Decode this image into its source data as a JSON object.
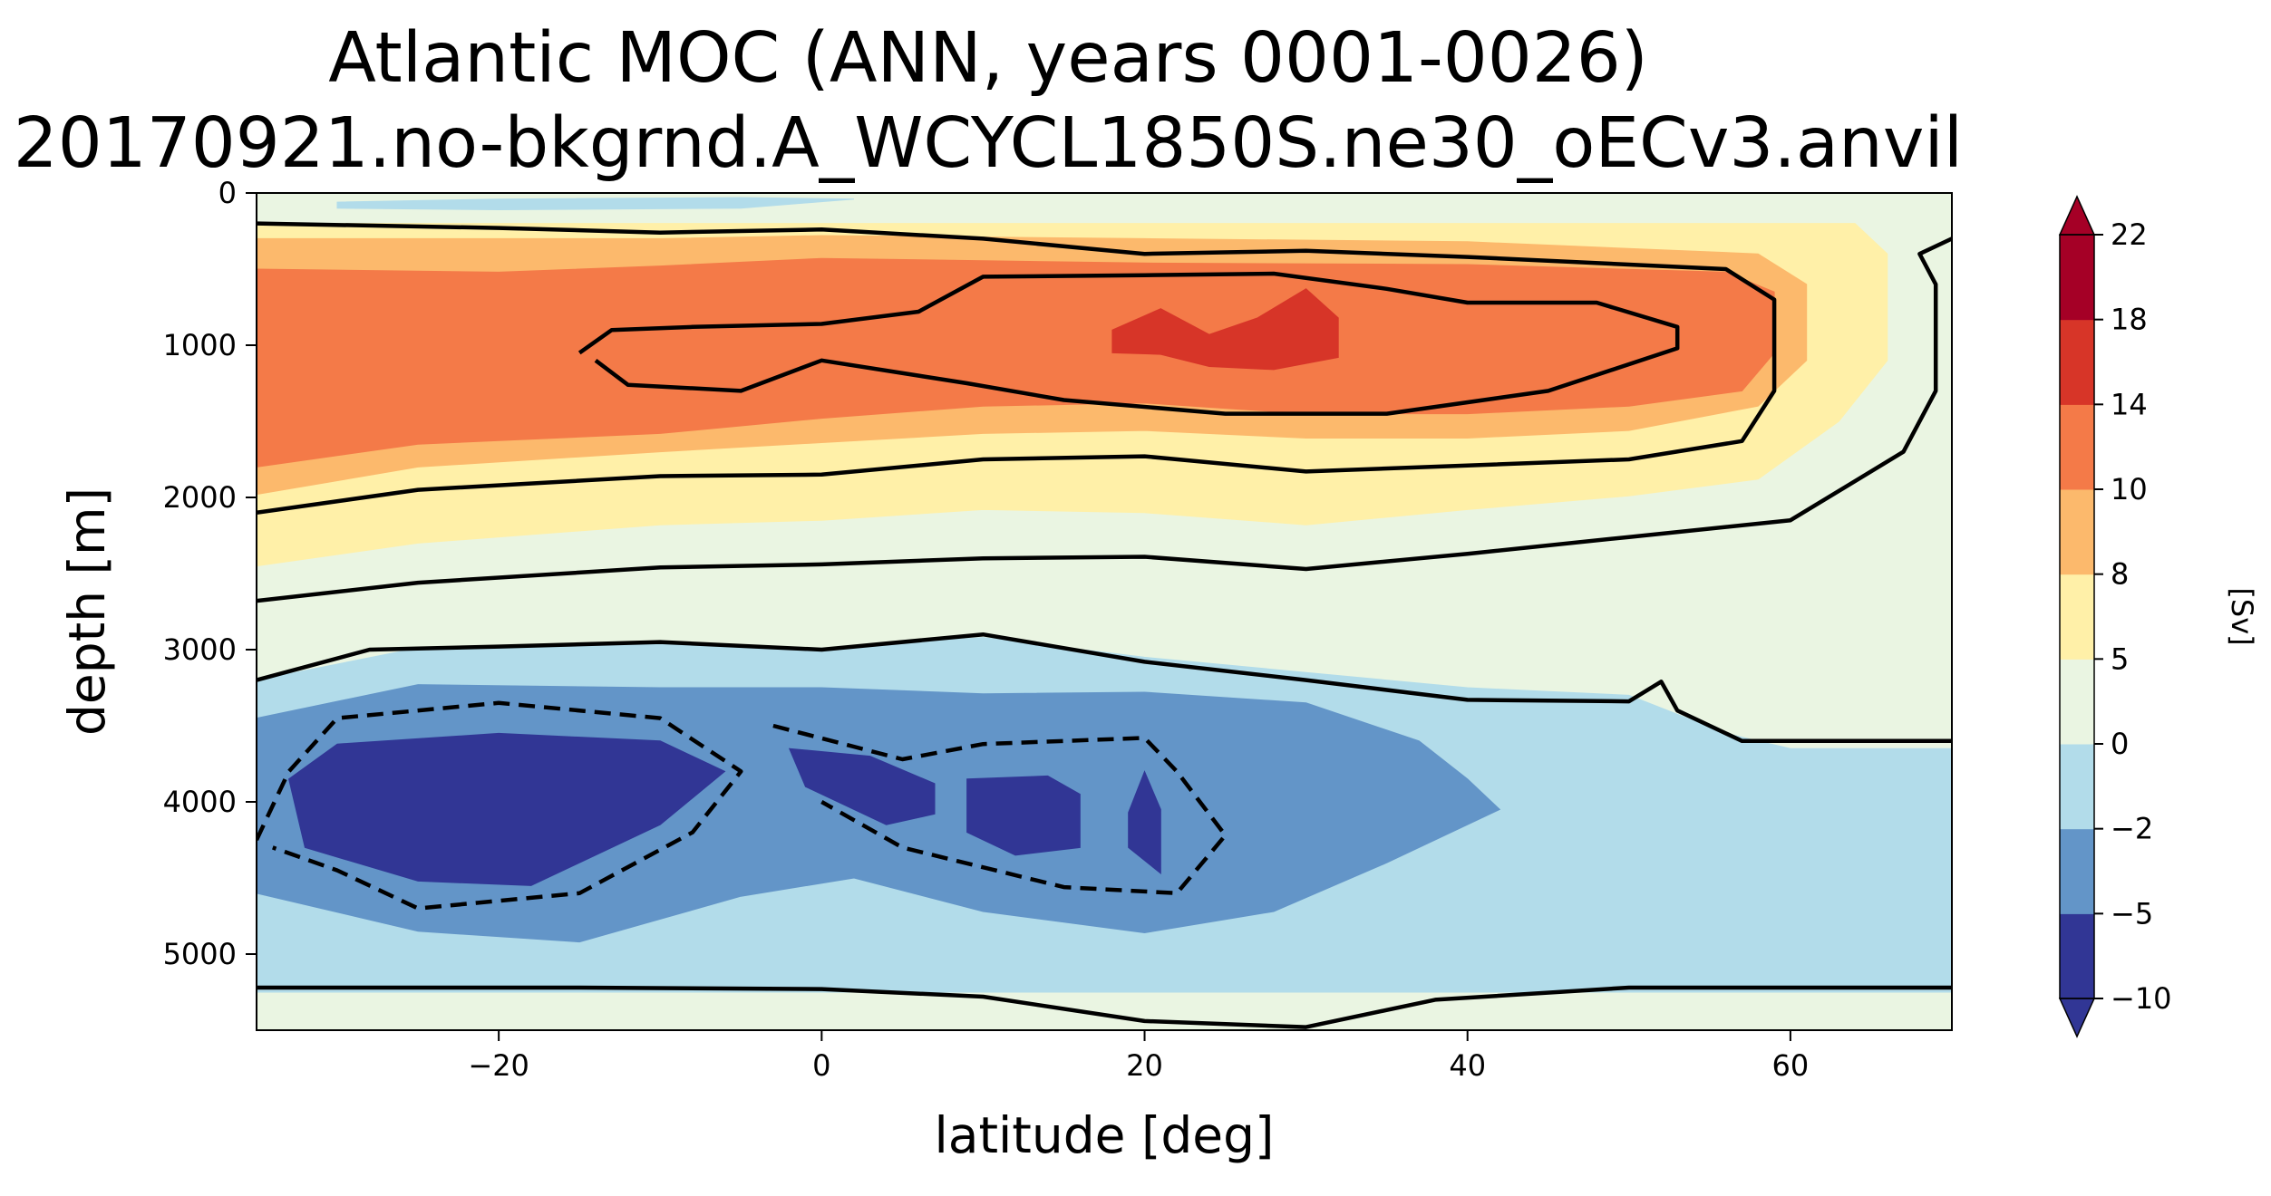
{
  "chart_data": {
    "type": "contourf",
    "title": "Atlantic MOC (ANN, years 0001-0026)",
    "subtitle": "20170921.no-bkgrnd.A_WCYCL1850S.ne30_oECv3.anvil",
    "xlabel": "latitude [deg]",
    "ylabel": "depth [m]",
    "xlim": [
      -35,
      70
    ],
    "ylim": [
      5500,
      0
    ],
    "x_ticks": [
      -20,
      0,
      20,
      40,
      60
    ],
    "x_tick_labels": [
      "−20",
      "0",
      "20",
      "40",
      "60"
    ],
    "y_ticks": [
      0,
      1000,
      2000,
      3000,
      4000,
      5000
    ],
    "y_tick_labels": [
      "0",
      "1000",
      "2000",
      "3000",
      "4000",
      "5000"
    ],
    "colorbar": {
      "label": "[Sv]",
      "levels": [
        -10,
        -5,
        -2,
        0,
        5,
        8,
        10,
        14,
        18,
        22
      ],
      "level_labels": [
        "−10",
        "−5",
        "−2",
        "0",
        "5",
        "8",
        "10",
        "14",
        "18",
        "22"
      ],
      "colors": [
        "#313695",
        "#6395c8",
        "#b2dcea",
        "#eaf5e2",
        "#fff0a8",
        "#fcb96c",
        "#f47a48",
        "#d73528",
        "#a50026"
      ],
      "extend": "both"
    },
    "regions": [
      {
        "level": 0,
        "points": [
          [
            -35,
            2700
          ],
          [
            -25,
            2580
          ],
          [
            -10,
            2480
          ],
          [
            0,
            2450
          ],
          [
            10,
            2420
          ],
          [
            20,
            2400
          ],
          [
            30,
            2480
          ],
          [
            40,
            2390
          ],
          [
            50,
            2280
          ],
          [
            60,
            2180
          ],
          [
            67,
            1800
          ],
          [
            70,
            1500
          ],
          [
            70,
            0
          ],
          [
            -35,
            0
          ]
        ]
      },
      {
        "level": 5,
        "points": [
          [
            -35,
            2450
          ],
          [
            -25,
            2300
          ],
          [
            -10,
            2180
          ],
          [
            0,
            2150
          ],
          [
            10,
            2080
          ],
          [
            20,
            2100
          ],
          [
            30,
            2180
          ],
          [
            40,
            2080
          ],
          [
            50,
            1990
          ],
          [
            58,
            1880
          ],
          [
            63,
            1500
          ],
          [
            66,
            1100
          ],
          [
            66,
            400
          ],
          [
            64,
            200
          ],
          [
            -35,
            200
          ]
        ]
      },
      {
        "level": 8,
        "points": [
          [
            -35,
            1980
          ],
          [
            -25,
            1800
          ],
          [
            -10,
            1700
          ],
          [
            0,
            1640
          ],
          [
            10,
            1580
          ],
          [
            20,
            1560
          ],
          [
            30,
            1610
          ],
          [
            40,
            1610
          ],
          [
            50,
            1560
          ],
          [
            58,
            1400
          ],
          [
            61,
            1100
          ],
          [
            61,
            600
          ],
          [
            58,
            400
          ],
          [
            40,
            320
          ],
          [
            20,
            300
          ],
          [
            0,
            280
          ],
          [
            -10,
            300
          ],
          [
            -35,
            300
          ]
        ]
      },
      {
        "level": 10,
        "points": [
          [
            -35,
            1800
          ],
          [
            -25,
            1650
          ],
          [
            -10,
            1580
          ],
          [
            0,
            1480
          ],
          [
            10,
            1400
          ],
          [
            20,
            1380
          ],
          [
            30,
            1450
          ],
          [
            40,
            1450
          ],
          [
            50,
            1400
          ],
          [
            57,
            1300
          ],
          [
            59,
            1050
          ],
          [
            59,
            650
          ],
          [
            56,
            520
          ],
          [
            40,
            470
          ],
          [
            20,
            460
          ],
          [
            0,
            430
          ],
          [
            -10,
            480
          ],
          [
            -20,
            520
          ],
          [
            -35,
            500
          ]
        ]
      },
      {
        "level": 14,
        "points": [
          [
            18,
            900
          ],
          [
            21,
            760
          ],
          [
            24,
            930
          ],
          [
            27,
            820
          ],
          [
            30,
            630
          ],
          [
            32,
            820
          ],
          [
            32,
            1080
          ],
          [
            28,
            1160
          ],
          [
            24,
            1140
          ],
          [
            21,
            1060
          ],
          [
            18,
            1050
          ]
        ]
      },
      {
        "level": -2,
        "points": [
          [
            -35,
            3200
          ],
          [
            -25,
            2990
          ],
          [
            -10,
            2950
          ],
          [
            0,
            2990
          ],
          [
            10,
            2920
          ],
          [
            20,
            3050
          ],
          [
            30,
            3150
          ],
          [
            40,
            3250
          ],
          [
            50,
            3300
          ],
          [
            56,
            3550
          ],
          [
            60,
            3650
          ],
          [
            70,
            3650
          ],
          [
            70,
            5250
          ],
          [
            -35,
            5250
          ]
        ]
      },
      {
        "level": -5,
        "points": [
          [
            -35,
            3450
          ],
          [
            -25,
            3230
          ],
          [
            -10,
            3250
          ],
          [
            0,
            3250
          ],
          [
            10,
            3290
          ],
          [
            20,
            3280
          ],
          [
            30,
            3350
          ],
          [
            37,
            3600
          ],
          [
            40,
            3850
          ],
          [
            42,
            4050
          ],
          [
            40,
            4150
          ],
          [
            35,
            4400
          ],
          [
            28,
            4720
          ],
          [
            20,
            4860
          ],
          [
            10,
            4720
          ],
          [
            2,
            4500
          ],
          [
            -5,
            4620
          ],
          [
            -15,
            4920
          ],
          [
            -25,
            4850
          ],
          [
            -35,
            4600
          ]
        ]
      },
      {
        "level": -10,
        "points": [
          [
            -33,
            3850
          ],
          [
            -30,
            3620
          ],
          [
            -20,
            3550
          ],
          [
            -10,
            3600
          ],
          [
            -6,
            3800
          ],
          [
            -10,
            4150
          ],
          [
            -18,
            4550
          ],
          [
            -25,
            4520
          ],
          [
            -32,
            4300
          ]
        ]
      },
      {
        "level": -10,
        "points": [
          [
            -2,
            3650
          ],
          [
            3,
            3700
          ],
          [
            7,
            3880
          ],
          [
            7,
            4080
          ],
          [
            4,
            4150
          ],
          [
            -1,
            3900
          ]
        ]
      },
      {
        "level": -10,
        "points": [
          [
            9,
            3850
          ],
          [
            14,
            3830
          ],
          [
            16,
            3950
          ],
          [
            16,
            4300
          ],
          [
            12,
            4350
          ],
          [
            9,
            4200
          ]
        ]
      },
      {
        "level": -10,
        "points": [
          [
            19,
            4070
          ],
          [
            20,
            3800
          ],
          [
            21,
            4050
          ],
          [
            21,
            4470
          ],
          [
            19,
            4300
          ]
        ]
      },
      {
        "level": -2,
        "points": [
          [
            -30,
            60
          ],
          [
            -20,
            40
          ],
          [
            -5,
            30
          ],
          [
            2,
            40
          ],
          [
            -5,
            100
          ],
          [
            -20,
            110
          ],
          [
            -30,
            100
          ]
        ]
      }
    ],
    "contours": [
      {
        "style": "solid",
        "points": [
          [
            -35,
            2680
          ],
          [
            -25,
            2560
          ],
          [
            -10,
            2460
          ],
          [
            0,
            2440
          ],
          [
            10,
            2400
          ],
          [
            20,
            2390
          ],
          [
            30,
            2470
          ],
          [
            40,
            2370
          ],
          [
            50,
            2260
          ],
          [
            60,
            2150
          ],
          [
            67,
            1700
          ],
          [
            69,
            1300
          ],
          [
            69,
            600
          ],
          [
            68,
            400
          ],
          [
            70,
            300
          ]
        ]
      },
      {
        "style": "solid",
        "points": [
          [
            -35,
            2100
          ],
          [
            -25,
            1950
          ],
          [
            -10,
            1860
          ],
          [
            0,
            1850
          ],
          [
            10,
            1750
          ],
          [
            20,
            1730
          ],
          [
            30,
            1830
          ],
          [
            40,
            1790
          ],
          [
            50,
            1750
          ],
          [
            57,
            1630
          ],
          [
            59,
            1300
          ],
          [
            59,
            700
          ],
          [
            56,
            500
          ],
          [
            50,
            470
          ],
          [
            40,
            420
          ],
          [
            30,
            380
          ],
          [
            20,
            400
          ],
          [
            10,
            300
          ],
          [
            0,
            240
          ],
          [
            -10,
            260
          ],
          [
            -20,
            230
          ],
          [
            -35,
            200
          ]
        ]
      },
      {
        "style": "solid",
        "points": [
          [
            -15,
            1050
          ],
          [
            -13,
            900
          ],
          [
            -8,
            880
          ],
          [
            0,
            860
          ],
          [
            6,
            780
          ],
          [
            10,
            550
          ],
          [
            20,
            540
          ],
          [
            28,
            530
          ],
          [
            35,
            630
          ],
          [
            40,
            720
          ],
          [
            48,
            720
          ],
          [
            53,
            880
          ],
          [
            53,
            1020
          ],
          [
            45,
            1300
          ],
          [
            35,
            1450
          ],
          [
            25,
            1450
          ],
          [
            15,
            1360
          ],
          [
            9,
            1250
          ],
          [
            0,
            1100
          ],
          [
            -5,
            1300
          ],
          [
            -12,
            1260
          ],
          [
            -14,
            1100
          ]
        ]
      },
      {
        "style": "solid",
        "points": [
          [
            -35,
            3200
          ],
          [
            -28,
            3000
          ],
          [
            -20,
            2980
          ],
          [
            -10,
            2950
          ],
          [
            0,
            3000
          ],
          [
            10,
            2900
          ],
          [
            20,
            3080
          ],
          [
            30,
            3200
          ],
          [
            40,
            3330
          ],
          [
            50,
            3340
          ],
          [
            52,
            3210
          ],
          [
            53,
            3400
          ],
          [
            57,
            3600
          ],
          [
            70,
            3600
          ]
        ]
      },
      {
        "style": "solid",
        "points": [
          [
            -35,
            5220
          ],
          [
            -15,
            5220
          ],
          [
            0,
            5230
          ],
          [
            10,
            5280
          ],
          [
            20,
            5440
          ],
          [
            30,
            5480
          ],
          [
            38,
            5300
          ],
          [
            50,
            5220
          ],
          [
            70,
            5220
          ]
        ]
      },
      {
        "style": "dashed",
        "points": [
          [
            -35,
            4250
          ],
          [
            -33,
            3800
          ],
          [
            -30,
            3450
          ],
          [
            -20,
            3350
          ],
          [
            -10,
            3450
          ],
          [
            -5,
            3800
          ],
          [
            -8,
            4200
          ],
          [
            -15,
            4600
          ],
          [
            -25,
            4700
          ],
          [
            -30,
            4450
          ],
          [
            -34,
            4300
          ]
        ]
      },
      {
        "style": "dashed",
        "points": [
          [
            -3,
            3500
          ],
          [
            5,
            3720
          ],
          [
            10,
            3620
          ],
          [
            20,
            3580
          ],
          [
            22,
            3800
          ],
          [
            25,
            4220
          ],
          [
            22,
            4600
          ],
          [
            15,
            4560
          ],
          [
            5,
            4300
          ],
          [
            0,
            4000
          ]
        ]
      }
    ]
  }
}
